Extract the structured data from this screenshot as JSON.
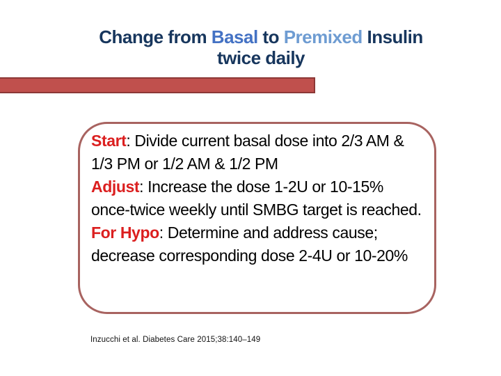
{
  "title": {
    "line1_parts": [
      {
        "text": "Change from ",
        "color": "#17365D"
      },
      {
        "text": "Basal",
        "color": "#4472C4"
      },
      {
        "text": " to ",
        "color": "#17365D"
      },
      {
        "text": "Premixed",
        "color": "#6E9CD2"
      },
      {
        "text": " Insulin",
        "color": "#17365D"
      }
    ],
    "line2": "twice daily"
  },
  "callout": {
    "paragraphs": [
      {
        "lead": "Start",
        "body": ": Divide current basal dose into 2/3 AM & 1/3 PM or 1/2 AM & 1/2 PM"
      },
      {
        "lead": "Adjust",
        "body": ": Increase the dose 1-2U or 10-15% once-twice weekly until SMBG target is reached."
      },
      {
        "lead": "For Hypo",
        "body": ": Determine and address cause; decrease corresponding dose 2-4U or 10-20%"
      }
    ]
  },
  "citation": "Inzucchi et al. Diabetes Care 2015;38:140–149",
  "colors": {
    "title_dark_navy": "#17365D",
    "title_basal_blue": "#4472C4",
    "title_premixed_blue": "#6E9CD2",
    "bar_fill": "#C0504D",
    "bar_border": "#8C3836",
    "callout_border": "#A86360",
    "lead_red": "#DB1F1F",
    "body_text": "#000000",
    "background": "#FFFFFF"
  }
}
